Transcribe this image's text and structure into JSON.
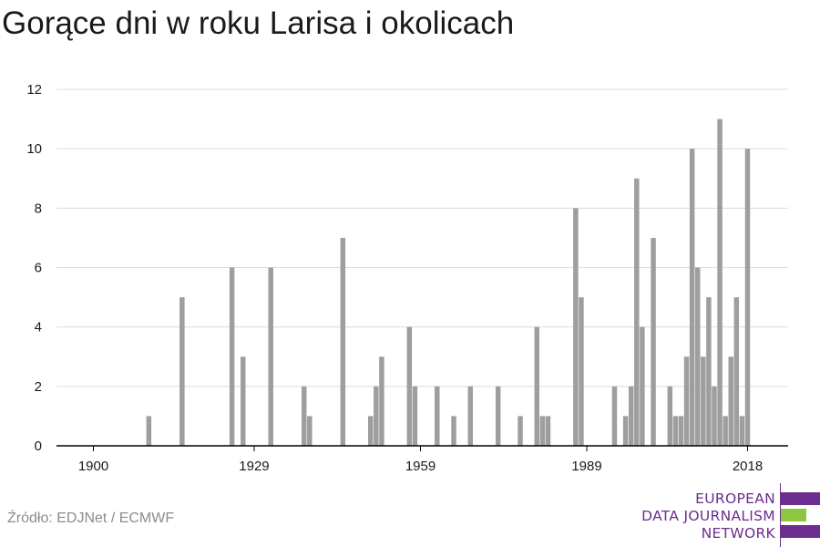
{
  "title": "Gorące dni w roku Larisa i okolicach",
  "source": "Źródło: EDJNet / ECMWF",
  "logo": {
    "lines": [
      "EUROPEAN",
      "DATA JOURNALISM",
      "NETWORK"
    ],
    "purple": "#6b2d8e",
    "green": "#8dc63f"
  },
  "colors": {
    "bar": "#9e9e9e",
    "grid": "#dcdcdc",
    "axis": "#000000",
    "text": "#1a1a1a"
  },
  "chart_data": {
    "type": "bar",
    "title": "Gorące dni w roku Larisa i okolicach",
    "xlabel": "",
    "ylabel": "",
    "xlim": [
      1900,
      2018
    ],
    "ylim": [
      0,
      12
    ],
    "x_ticks": [
      1900,
      1929,
      1959,
      1989,
      2018
    ],
    "y_ticks": [
      0,
      2,
      4,
      6,
      8,
      10,
      12
    ],
    "grid": true,
    "x": [
      1910,
      1916,
      1925,
      1927,
      1932,
      1938,
      1939,
      1945,
      1950,
      1951,
      1952,
      1957,
      1958,
      1962,
      1965,
      1968,
      1973,
      1977,
      1980,
      1981,
      1982,
      1987,
      1988,
      1994,
      1996,
      1997,
      1998,
      1999,
      2001,
      2004,
      2005,
      2006,
      2007,
      2008,
      2009,
      2010,
      2011,
      2012,
      2013,
      2014,
      2015,
      2016,
      2017,
      2018
    ],
    "values": [
      1,
      5,
      6,
      3,
      6,
      2,
      1,
      7,
      1,
      2,
      3,
      4,
      2,
      2,
      1,
      2,
      2,
      1,
      4,
      1,
      1,
      8,
      5,
      2,
      1,
      2,
      9,
      4,
      7,
      2,
      1,
      1,
      3,
      10,
      6,
      3,
      5,
      2,
      11,
      1,
      3,
      5,
      1,
      10
    ]
  }
}
